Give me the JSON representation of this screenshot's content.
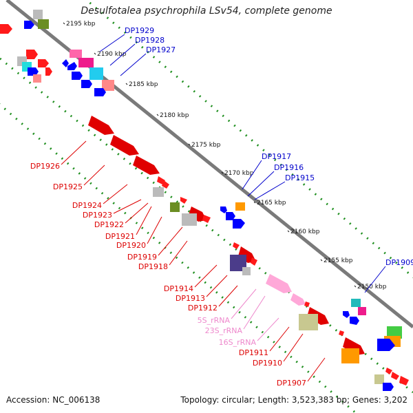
{
  "title": "Desulfotalea psychrophila LSv54, complete genome",
  "footer": {
    "accession_label": "Accession:",
    "accession": "NC_006138",
    "topology_label": "Topology:",
    "topology": "circular",
    "length_label": "Length:",
    "length": "3,523,383 bp",
    "genes_label": "Genes:",
    "genes": "3,202"
  },
  "colors": {
    "plus_strand_label": "#0000cc",
    "minus_strand_label": "#dd0000",
    "rna_label": "#ee88cc",
    "axis": "#7a7a7a",
    "tick": "#1a8a1a"
  },
  "scale_labels": [
    "2195 kbp",
    "2190 kbp",
    "2185 kbp",
    "2180 kbp",
    "2175 kbp",
    "2170 kbp",
    "2165 kbp",
    "2160 kbp",
    "2155 kbp",
    "2150 kbp"
  ],
  "plus_genes": [
    "DP1929",
    "DP1928",
    "DP1927",
    "DP1917",
    "DP1916",
    "DP1915",
    "DP1909"
  ],
  "minus_genes": [
    "DP1926",
    "DP1925",
    "DP1924",
    "DP1923",
    "DP1922",
    "DP1921",
    "DP1920",
    "DP1919",
    "DP1918",
    "DP1914",
    "DP1913",
    "DP1912",
    "DP1911",
    "DP1910",
    "DP1907"
  ],
  "rna_genes": [
    "5S_rRNA",
    "23S_rRNA",
    "16S_rRNA"
  ]
}
